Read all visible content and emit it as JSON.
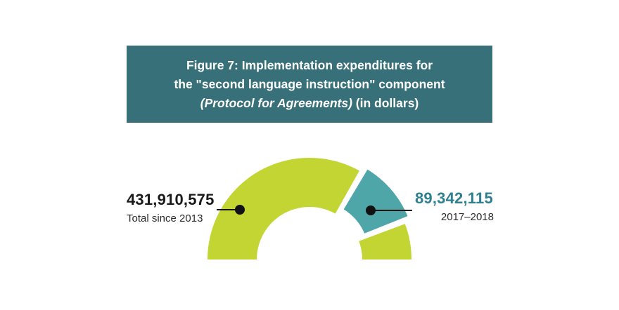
{
  "title": {
    "line1": "Figure 7: Implementation expenditures for",
    "line2": "the \"second language instruction\" component",
    "line3_italic": "(Protocol for Agreements)",
    "line3_rest": " (in dollars)"
  },
  "chart_data": {
    "type": "pie",
    "subtype": "semicircular-donut-gauge",
    "title": "Figure 7: Implementation expenditures for the \"second language instruction\" component (Protocol for Agreements) (in dollars)",
    "series": [
      {
        "name": "Total since 2013",
        "value": 431910575,
        "display": "431,910,575",
        "exploded": false
      },
      {
        "name": "2017–2018",
        "value": 89342115,
        "display": "89,342,115",
        "exploded": true
      }
    ],
    "callouts": {
      "left_value": "431,910,575",
      "left_caption": "Total since 2013",
      "right_value": "89,342,115",
      "right_caption": "2017–2018"
    },
    "legend_position": "callout-labels-with-leader-lines",
    "colors": {
      "header_bg": "#377078",
      "gauge_green": "#c2d533",
      "slice_teal": "#4fa6a9",
      "teal_text": "#2e7f8f",
      "leader_black": "#111111"
    }
  }
}
